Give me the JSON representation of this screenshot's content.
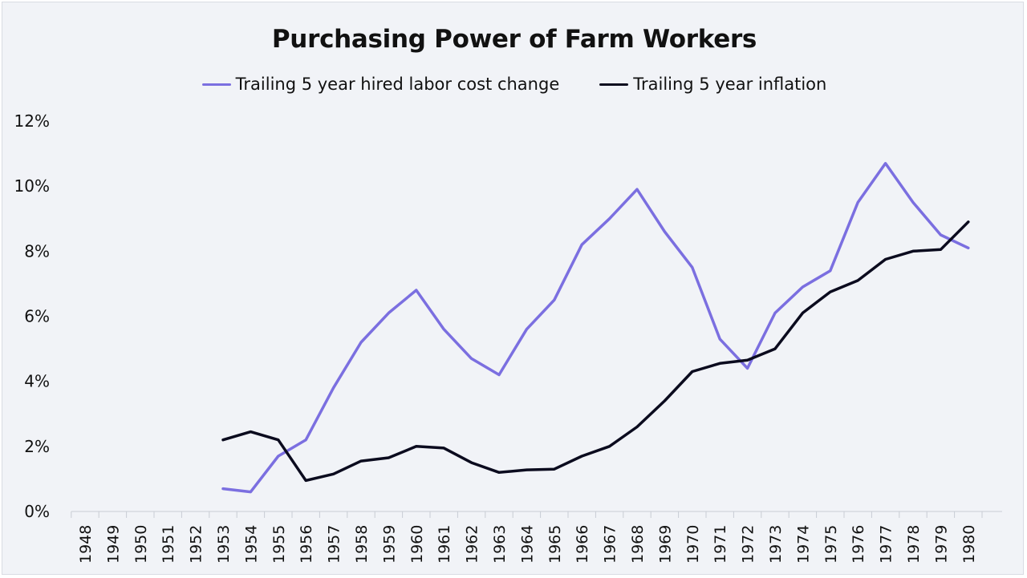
{
  "chart_data": {
    "type": "line",
    "title": "Purchasing Power of Farm Workers",
    "xlabel": "",
    "ylabel": "",
    "categories": [
      "1948",
      "1949",
      "1950",
      "1951",
      "1952",
      "1953",
      "1954",
      "1955",
      "1956",
      "1957",
      "1958",
      "1959",
      "1960",
      "1961",
      "1962",
      "1963",
      "1964",
      "1965",
      "1966",
      "1967",
      "1968",
      "1969",
      "1970",
      "1971",
      "1972",
      "1973",
      "1974",
      "1975",
      "1976",
      "1977",
      "1978",
      "1979",
      "1980"
    ],
    "yticks": [
      "0%",
      "2%",
      "4%",
      "6%",
      "8%",
      "10%",
      "12%"
    ],
    "ylim": [
      0,
      12
    ],
    "grid": false,
    "legend_position": "top",
    "series": [
      {
        "name": "Trailing 5 year hired labor cost change",
        "color": "#7b6fe0",
        "values": [
          null,
          null,
          null,
          null,
          null,
          0.7,
          0.6,
          1.7,
          2.2,
          3.8,
          5.2,
          6.1,
          6.8,
          5.6,
          4.7,
          4.2,
          5.6,
          6.5,
          8.2,
          9.0,
          9.9,
          8.6,
          7.5,
          5.3,
          4.4,
          6.1,
          6.9,
          7.4,
          9.5,
          10.7,
          9.5,
          8.5,
          8.1
        ]
      },
      {
        "name": "Trailing 5 year inflation",
        "color": "#0b0b1e",
        "values": [
          null,
          null,
          null,
          null,
          null,
          2.2,
          2.45,
          2.2,
          0.95,
          1.15,
          1.55,
          1.65,
          2.0,
          1.95,
          1.5,
          1.2,
          1.28,
          1.3,
          1.7,
          2.0,
          2.6,
          3.4,
          4.3,
          4.55,
          4.65,
          5.0,
          6.1,
          6.75,
          7.1,
          7.75,
          8.0,
          8.05,
          8.9
        ]
      }
    ]
  }
}
